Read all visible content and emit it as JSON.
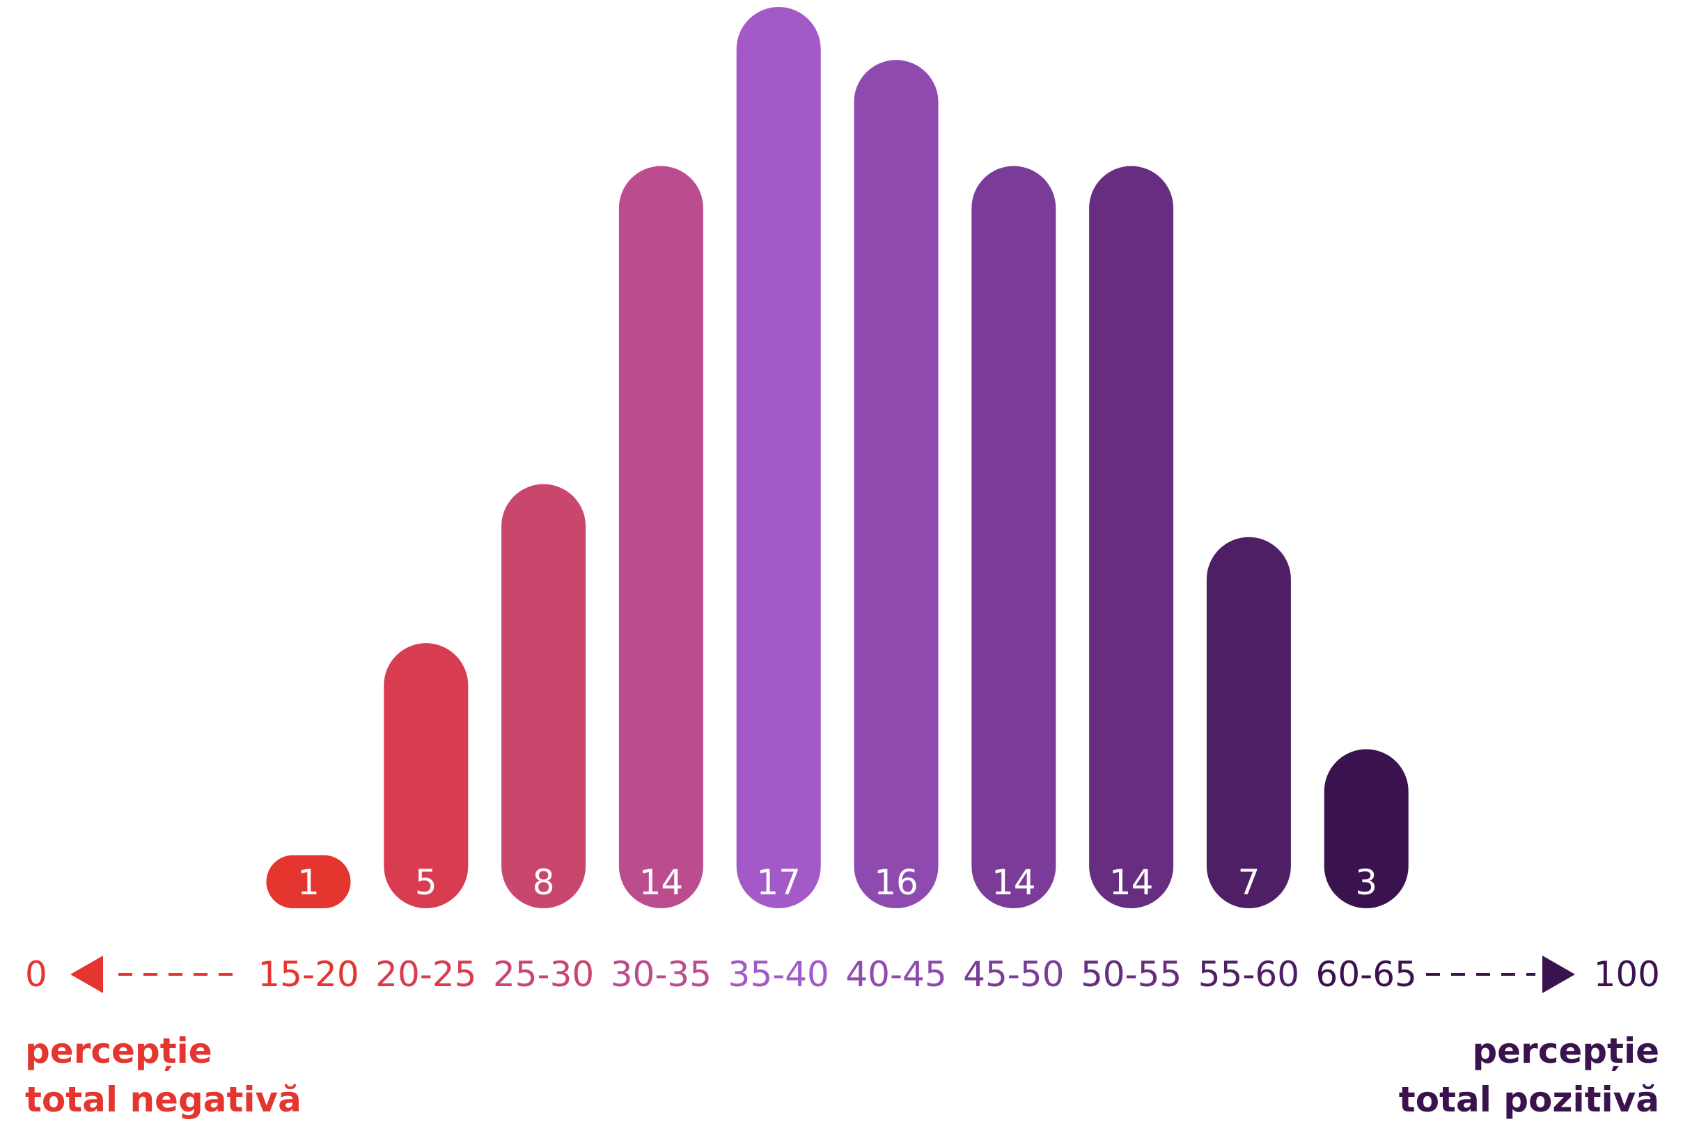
{
  "chart_data": {
    "type": "bar",
    "categories": [
      "15-20",
      "20-25",
      "25-30",
      "30-35",
      "35-40",
      "40-45",
      "45-50",
      "50-55",
      "55-60",
      "60-65"
    ],
    "values": [
      1,
      5,
      8,
      14,
      17,
      16,
      14,
      14,
      7,
      3
    ],
    "colors": [
      "#e4352f",
      "#d83c50",
      "#c9466c",
      "#bb4d8f",
      "#a35ac8",
      "#8f4ab0",
      "#7a3c98",
      "#662d80",
      "#4f1f66",
      "#3a124d"
    ],
    "ylim": [
      0,
      17
    ],
    "grid": false,
    "axis": {
      "left_end": "0",
      "right_end": "100",
      "left_color": "#e4352f",
      "right_color": "#3a124d"
    }
  },
  "captions": {
    "left": {
      "line1": "percepție",
      "line2": "total negativă",
      "color": "#e4352f"
    },
    "right": {
      "line1": "percepție",
      "line2": "total pozitivă",
      "color": "#3a124d"
    }
  }
}
